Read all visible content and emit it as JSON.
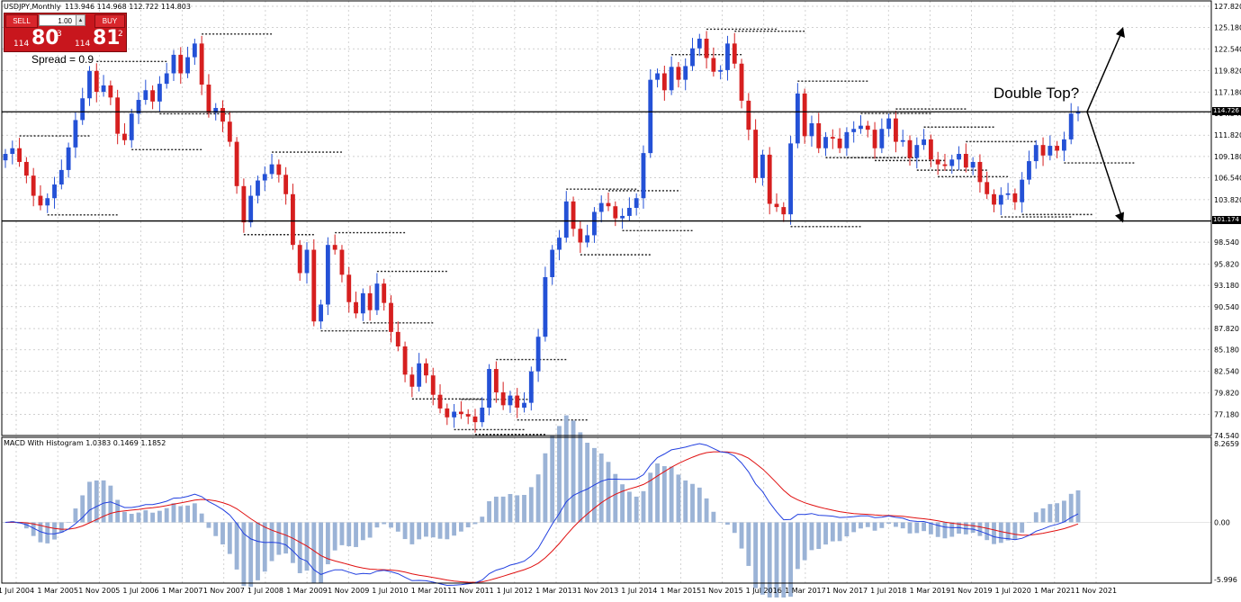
{
  "header": {
    "symbol_info": "USDJPY,Monthly",
    "ohlc": "113.946 114.968 112.722 114.803"
  },
  "trade_panel": {
    "sell_label": "SELL",
    "buy_label": "BUY",
    "lot": "1.00",
    "sell_price_prefix": "114",
    "sell_price_main": "80",
    "sell_price_sup": "3",
    "buy_price_prefix": "114",
    "buy_price_main": "81",
    "buy_price_sup": "2",
    "spread": "Spread = 0.9"
  },
  "annotation": "Double Top?",
  "horizontal_lines": [
    {
      "label": "114.726",
      "value": 114.726
    },
    {
      "label": "101.174",
      "value": 101.174
    }
  ],
  "colors": {
    "bull": "#2451d6",
    "bear": "#d61f1f",
    "grid": "#c0c0c0",
    "macd_line": "#2240e0",
    "signal_line": "#e01010",
    "histogram": "#9bb3d6",
    "fractal": "#222222"
  },
  "price_axis": {
    "ticks": [
      "127.820",
      "125.180",
      "122.540",
      "119.820",
      "117.180",
      "114.540",
      "111.820",
      "109.180",
      "106.540",
      "103.820",
      "101.180",
      "98.540",
      "95.820",
      "93.180",
      "90.540",
      "87.820",
      "85.180",
      "82.540",
      "79.820",
      "77.180",
      "74.540"
    ],
    "min": 74.54,
    "max": 127.82
  },
  "time_axis": {
    "labels": [
      "1 Jul 2004",
      "1 Mar 2005",
      "1 Nov 2005",
      "1 Jul 2006",
      "1 Mar 2007",
      "1 Nov 2007",
      "1 Jul 2008",
      "1 Mar 2009",
      "1 Nov 2009",
      "1 Jul 2010",
      "1 Mar 2011",
      "1 Nov 2011",
      "1 Jul 2012",
      "1 Mar 2013",
      "1 Nov 2013",
      "1 Jul 2014",
      "1 Mar 2015",
      "1 Nov 2015",
      "1 Jul 2016",
      "1 Mar 2017",
      "1 Nov 2017",
      "1 Jul 2018",
      "1 Mar 2019",
      "1 Nov 2019",
      "1 Jul 2020",
      "1 Mar 2021",
      "1 Nov 2021"
    ]
  },
  "macd": {
    "title": "MACD With Histogram 1.0383 0.1469 1.1852",
    "ticks": [
      "8.2659",
      "0.00",
      "-5.996"
    ],
    "max": 8.2659,
    "min": -5.996
  },
  "chart_data": {
    "type": "candlestick",
    "symbol": "USDJPY",
    "timeframe": "Monthly",
    "ylim": [
      74.54,
      127.82
    ],
    "close_path": [
      109.5,
      110.2,
      108.5,
      106.8,
      104.3,
      103.1,
      104.0,
      105.7,
      107.5,
      110.3,
      113.7,
      116.4,
      119.8,
      117.2,
      118.0,
      116.5,
      112.0,
      111.2,
      114.5,
      116.2,
      117.4,
      116.0,
      118.2,
      119.5,
      121.8,
      119.5,
      121.5,
      123.2,
      118.1,
      114.6,
      115.2,
      113.5,
      111.0,
      105.5,
      101.0,
      104.3,
      106.2,
      107.0,
      108.2,
      106.9,
      104.5,
      98.2,
      94.7,
      97.6,
      88.7,
      90.8,
      98.2,
      97.6,
      94.5,
      91.1,
      89.7,
      92.2,
      90.1,
      93.4,
      91.0,
      87.4,
      85.6,
      82.1,
      80.6,
      83.5,
      82.0,
      79.6,
      77.9,
      76.8,
      77.5,
      77.2,
      76.9,
      76.2,
      78.0,
      82.8,
      79.9,
      78.3,
      79.5,
      78.0,
      78.6,
      82.5,
      86.8,
      94.2,
      97.6,
      99.1,
      103.6,
      100.2,
      98.5,
      99.4,
      102.3,
      103.4,
      103.0,
      101.5,
      101.8,
      102.8,
      104.0,
      109.6,
      118.7,
      119.5,
      117.4,
      120.3,
      118.7,
      120.4,
      122.6,
      123.8,
      121.4,
      119.7,
      119.9,
      123.2,
      120.7,
      116.1,
      112.5,
      106.5,
      109.4,
      103.3,
      102.9,
      102.0,
      110.8,
      117.0,
      111.7,
      113.3,
      110.2,
      111.6,
      111.4,
      110.2,
      112.2,
      112.6,
      113.0,
      112.5,
      110.2,
      112.6,
      113.9,
      111.0,
      111.2,
      109.0,
      110.6,
      111.3,
      108.8,
      108.2,
      108.0,
      108.8,
      109.5,
      107.8,
      108.5,
      106.0,
      104.5,
      103.2,
      104.4,
      104.6,
      103.5,
      106.3,
      108.6,
      110.6,
      109.3,
      110.5,
      109.9,
      111.3,
      114.5,
      114.8
    ]
  }
}
